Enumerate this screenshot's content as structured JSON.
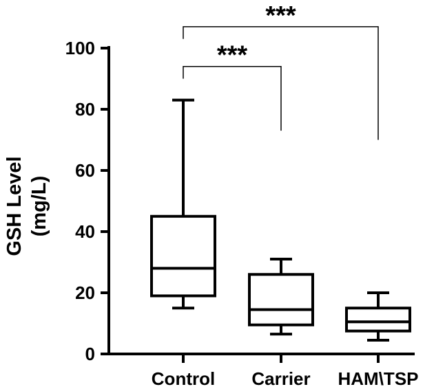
{
  "chart_data": {
    "type": "box",
    "ylabel_line1": "GSH Level",
    "ylabel_line2": "(mg/L)",
    "ylim": [
      0,
      100
    ],
    "yticks": [
      0,
      20,
      40,
      60,
      80,
      100
    ],
    "categories": [
      "Control",
      "Carrier",
      "HAM\\TSP"
    ],
    "boxes": [
      {
        "name": "Control",
        "min": 15,
        "q1": 19,
        "median": 28,
        "q3": 45,
        "max": 83
      },
      {
        "name": "Carrier",
        "min": 6.5,
        "q1": 9.5,
        "median": 14.5,
        "q3": 26,
        "max": 31
      },
      {
        "name": "HAM\\TSP",
        "min": 4.5,
        "q1": 7.5,
        "median": 10.5,
        "q3": 15,
        "max": 20
      }
    ],
    "significance": [
      {
        "from": "Control",
        "to": "Carrier",
        "label": "***",
        "level": 94,
        "drop_to": 73
      },
      {
        "from": "Control",
        "to": "HAM\\TSP",
        "label": "***",
        "level": 107,
        "drop_to": 70
      }
    ],
    "grid": false,
    "legend": "none"
  }
}
